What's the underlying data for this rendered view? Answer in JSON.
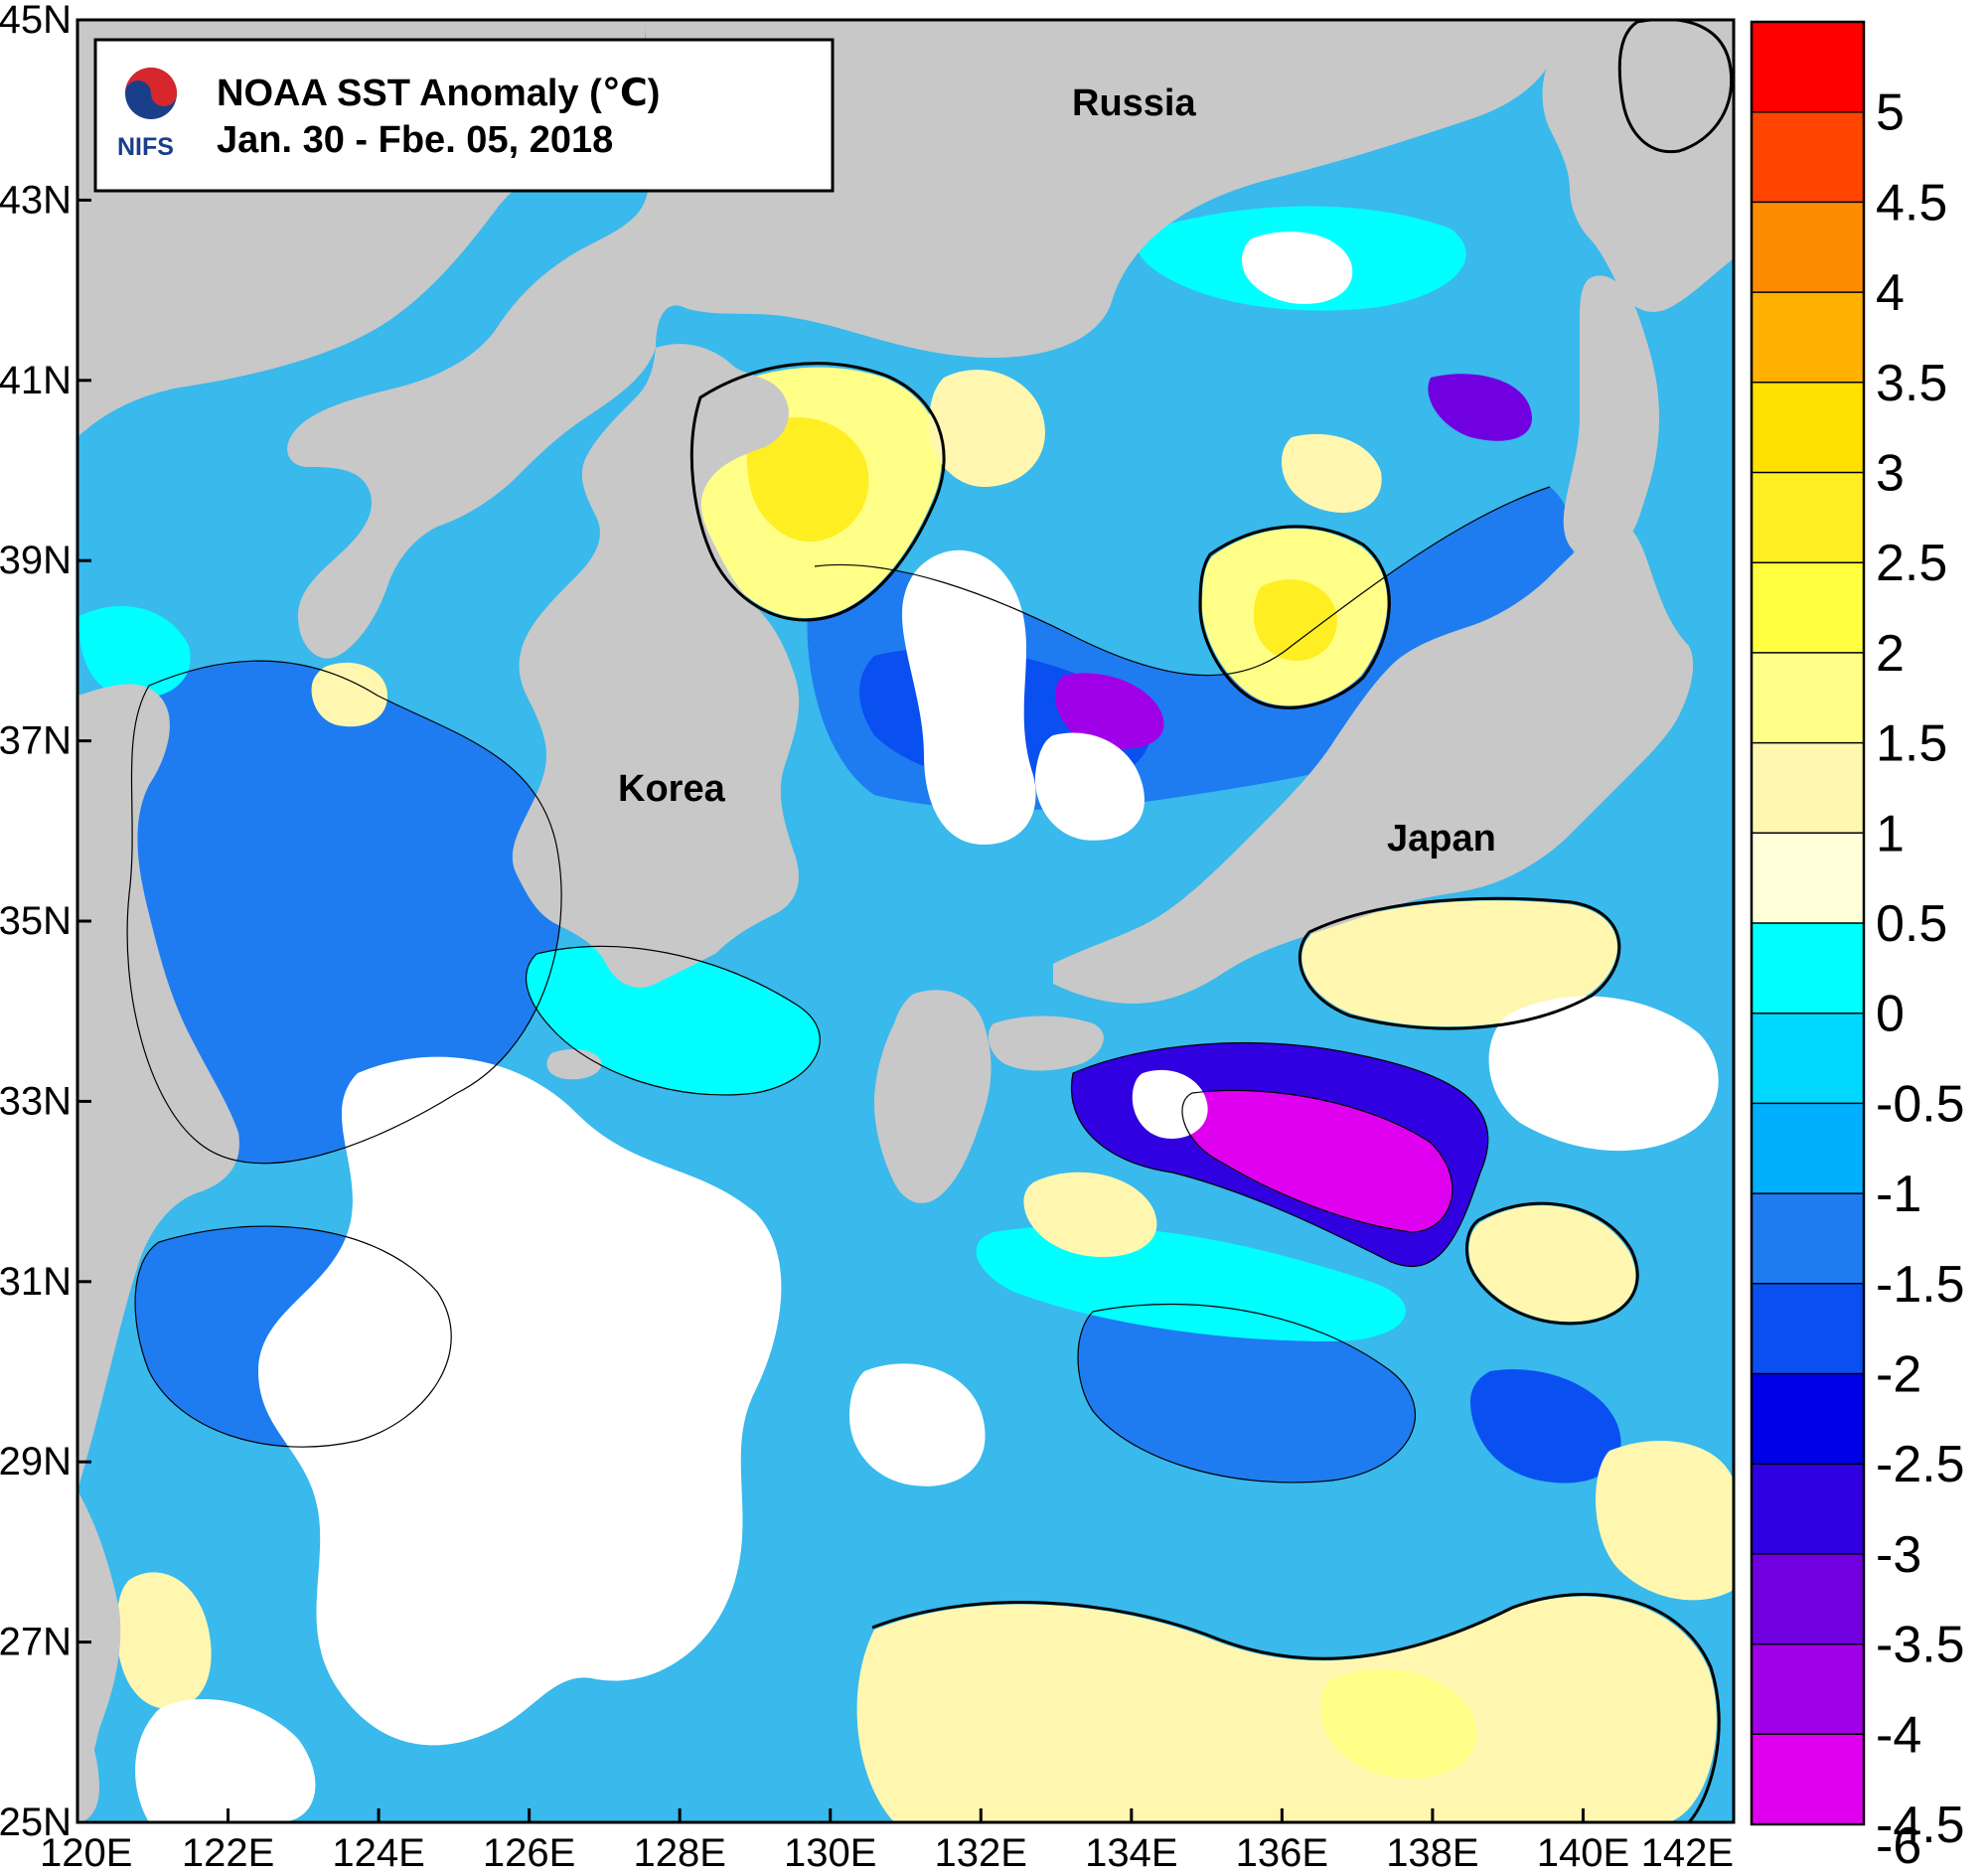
{
  "title": {
    "logo_text": "NIFS",
    "line1": "NOAA SST Anomaly (℃)",
    "line2": "Jan. 30 - Fbe. 05,  2018"
  },
  "regions": {
    "russia": "Russia",
    "korea": "Korea",
    "japan": "Japan"
  },
  "lat_ticks": [
    "45N",
    "43N",
    "41N",
    "39N",
    "37N",
    "35N",
    "33N",
    "31N",
    "29N",
    "27N",
    "25N"
  ],
  "lon_ticks": [
    "120E",
    "122E",
    "124E",
    "126E",
    "128E",
    "130E",
    "132E",
    "134E",
    "136E",
    "138E",
    "140E",
    "142E"
  ],
  "colorbar": {
    "labels": [
      "5",
      "4.5",
      "4",
      "3.5",
      "3",
      "2.5",
      "2",
      "1.5",
      "1",
      "0.5",
      "0",
      "-0.5",
      "-1",
      "-1.5",
      "-2",
      "-2.5",
      "-3",
      "-3.5",
      "-4",
      "-4.5",
      "-6"
    ],
    "colors": [
      "#ff0000",
      "#ff4500",
      "#ff8c00",
      "#ffb000",
      "#ffe000",
      "#ffee22",
      "#ffff40",
      "#ffff88",
      "#fff7b0",
      "#ffffd8",
      "#00ffff",
      "#00d8ff",
      "#00b0ff",
      "#1e7cf0",
      "#0a50f0",
      "#0000e8",
      "#3000e0",
      "#7000e0",
      "#a000e8",
      "#e000f0"
    ]
  },
  "colors": {
    "land": "#c8c8c8",
    "missing": "#ffffff",
    "frame": "#000000"
  }
}
